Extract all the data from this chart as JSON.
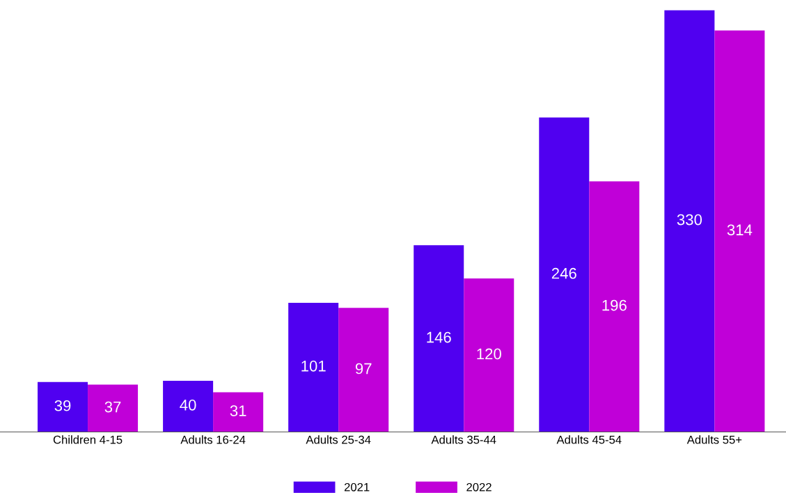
{
  "chart_data": {
    "type": "bar",
    "categories": [
      "Children 4-15",
      "Adults 16-24",
      "Adults 25-34",
      "Adults 35-44",
      "Adults 45-54",
      "Adults 55+"
    ],
    "series": [
      {
        "name": "2021",
        "color": "#5000f0",
        "values": [
          39,
          40,
          101,
          146,
          246,
          330
        ]
      },
      {
        "name": "2022",
        "color": "#c000d8",
        "values": [
          37,
          31,
          97,
          120,
          196,
          314
        ]
      }
    ],
    "data_labels": true,
    "grid": false,
    "legend": "bottom",
    "tick_labels": "x"
  }
}
